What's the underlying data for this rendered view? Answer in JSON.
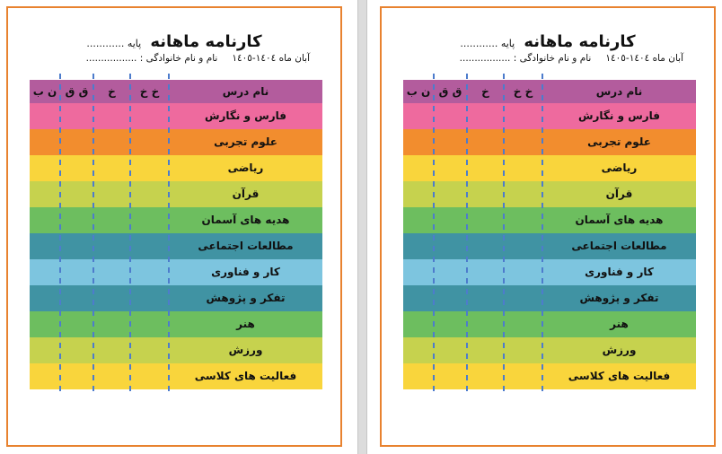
{
  "document": {
    "border_color": "#e8822f",
    "header_color": "#b35c9d",
    "dash_color": "#4d7ccc",
    "title_main": "کارنامه ماهانه",
    "title_suffix": "پایه ............",
    "date_line": "آبان ماه  ١٤٠٤-١٤٠٥",
    "name_line": "نام و نام خانوادگی : .................",
    "table": {
      "name_header": "نام درس",
      "grade_headers": [
        "خ خ",
        "خ",
        "ق ق",
        "ن ب"
      ],
      "rows": [
        {
          "subject": "فارس و نگارش",
          "color": "#ee6a9e"
        },
        {
          "subject": "علوم تجربی",
          "color": "#f28d2e"
        },
        {
          "subject": "ریاضی",
          "color": "#f9d53c"
        },
        {
          "subject": "قرآن",
          "color": "#c6d24e"
        },
        {
          "subject": "هدیه های آسمان",
          "color": "#6dbe5f"
        },
        {
          "subject": "مطالعات اجتماعی",
          "color": "#4093a3"
        },
        {
          "subject": "کار و فناوری",
          "color": "#7dc5df"
        },
        {
          "subject": "تفکر و پژوهش",
          "color": "#4093a3"
        },
        {
          "subject": "هنر",
          "color": "#6dbe5f"
        },
        {
          "subject": "ورزش",
          "color": "#c6d24e"
        },
        {
          "subject": "فعالیت های کلاسی",
          "color": "#f9d53c"
        }
      ]
    }
  }
}
